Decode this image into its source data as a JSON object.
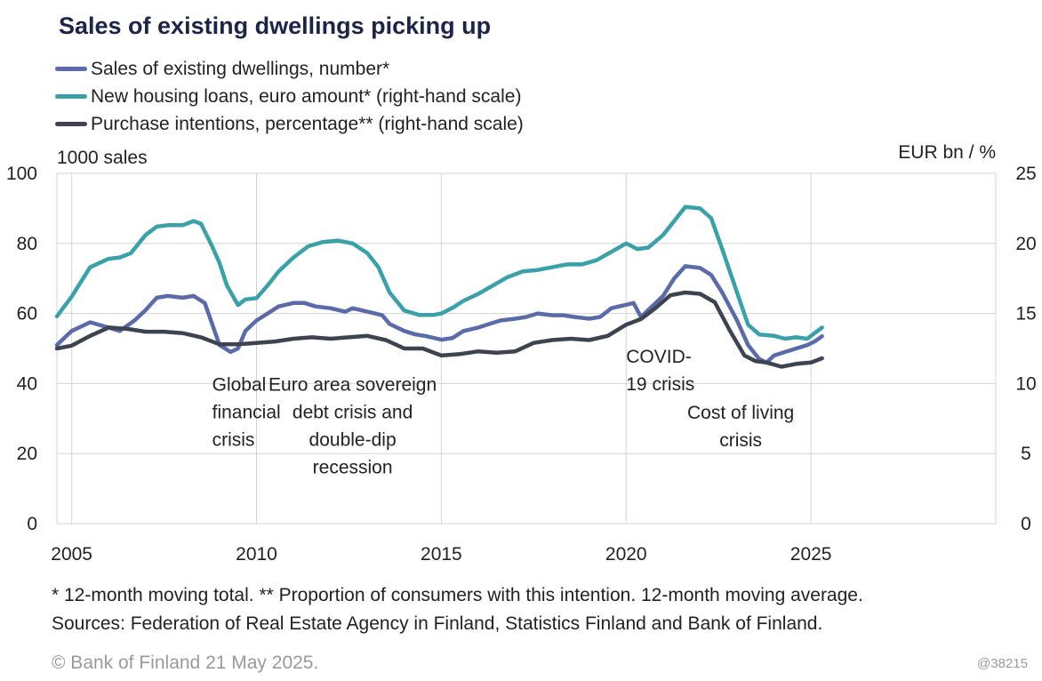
{
  "title": "Sales of existing dwellings picking up",
  "legend": [
    {
      "label": "Sales of existing dwellings, number*",
      "color": "#5b6aa9"
    },
    {
      "label": "New housing loans, euro amount* (right-hand scale)",
      "color": "#3ba1a8"
    },
    {
      "label": "Purchase intentions, percentage** (right-hand scale)",
      "color": "#3d4450"
    }
  ],
  "footnotes": {
    "line1": "* 12-month moving total. ** Proportion of consumers with this intention. 12-month moving average.",
    "line2": "Sources: Federation of Real Estate Agency in Finland, Statistics Finland and Bank of Finland.",
    "copyright": "© Bank of Finland 21 May 2025.",
    "chart_id": "@38215"
  },
  "chart_data": {
    "type": "line",
    "title": "Sales of existing dwellings picking up",
    "ylabel_left": "1000 sales",
    "ylabel_right": "EUR bn / %",
    "xlim": [
      2004.6,
      2030.0
    ],
    "ylim_left": [
      0,
      100
    ],
    "ylim_right": [
      0,
      25
    ],
    "left_ticks": [
      "0",
      "20",
      "40",
      "60",
      "80",
      "100"
    ],
    "right_ticks": [
      "0",
      "5",
      "10",
      "15",
      "20",
      "25"
    ],
    "x_ticks": [
      {
        "value": 2005,
        "label": "2005"
      },
      {
        "value": 2010,
        "label": "2010"
      },
      {
        "value": 2015,
        "label": "2015"
      },
      {
        "value": 2020,
        "label": "2020"
      },
      {
        "value": 2025,
        "label": "2025"
      }
    ],
    "grid": true,
    "legend_position": "top-left",
    "annotations": [
      {
        "lines": [
          "Global",
          "financial",
          "crisis"
        ],
        "x": 2008.8,
        "y": 40,
        "anchor": "start"
      },
      {
        "lines": [
          "Euro area sovereign",
          "debt crisis and",
          "double-dip",
          "recession"
        ],
        "x": 2012.6,
        "y": 40,
        "anchor": "middle"
      },
      {
        "lines": [
          "COVID-",
          "19 crisis"
        ],
        "x": 2020.0,
        "y": 48,
        "anchor": "start"
      },
      {
        "lines": [
          "Cost of living",
          "crisis"
        ],
        "x": 2023.1,
        "y": 32,
        "anchor": "middle"
      }
    ],
    "series": [
      {
        "name": "Sales of existing dwellings, number*",
        "axis": "left",
        "color": "#5b6aa9",
        "points": [
          [
            2004.6,
            51
          ],
          [
            2005.0,
            55
          ],
          [
            2005.5,
            57.5
          ],
          [
            2006.0,
            56
          ],
          [
            2006.3,
            55
          ],
          [
            2006.7,
            58
          ],
          [
            2007.0,
            61
          ],
          [
            2007.3,
            64.5
          ],
          [
            2007.6,
            65
          ],
          [
            2008.0,
            64.5
          ],
          [
            2008.3,
            65
          ],
          [
            2008.6,
            63
          ],
          [
            2008.8,
            57
          ],
          [
            2009.0,
            51
          ],
          [
            2009.3,
            49
          ],
          [
            2009.5,
            50
          ],
          [
            2009.7,
            55
          ],
          [
            2010.0,
            58
          ],
          [
            2010.3,
            60
          ],
          [
            2010.6,
            62
          ],
          [
            2011.0,
            63
          ],
          [
            2011.3,
            63
          ],
          [
            2011.6,
            62
          ],
          [
            2012.0,
            61.5
          ],
          [
            2012.4,
            60.5
          ],
          [
            2012.6,
            61.5
          ],
          [
            2013.0,
            60.5
          ],
          [
            2013.4,
            59.5
          ],
          [
            2013.6,
            57
          ],
          [
            2014.0,
            55
          ],
          [
            2014.3,
            54
          ],
          [
            2014.6,
            53.5
          ],
          [
            2015.0,
            52.5
          ],
          [
            2015.3,
            53
          ],
          [
            2015.6,
            55
          ],
          [
            2016.0,
            56
          ],
          [
            2016.3,
            57
          ],
          [
            2016.6,
            58
          ],
          [
            2017.0,
            58.5
          ],
          [
            2017.3,
            59
          ],
          [
            2017.6,
            60
          ],
          [
            2018.0,
            59.5
          ],
          [
            2018.3,
            59.5
          ],
          [
            2018.6,
            59
          ],
          [
            2019.0,
            58.5
          ],
          [
            2019.3,
            59
          ],
          [
            2019.6,
            61.5
          ],
          [
            2020.0,
            62.5
          ],
          [
            2020.2,
            63
          ],
          [
            2020.4,
            59
          ],
          [
            2020.6,
            61
          ],
          [
            2021.0,
            65
          ],
          [
            2021.3,
            70
          ],
          [
            2021.6,
            73.5
          ],
          [
            2022.0,
            73
          ],
          [
            2022.3,
            71
          ],
          [
            2022.6,
            66
          ],
          [
            2023.0,
            58
          ],
          [
            2023.3,
            51
          ],
          [
            2023.6,
            47
          ],
          [
            2023.8,
            46
          ],
          [
            2024.0,
            48
          ],
          [
            2024.3,
            49
          ],
          [
            2024.6,
            50
          ],
          [
            2024.9,
            51
          ],
          [
            2025.1,
            52
          ],
          [
            2025.3,
            53.5
          ]
        ]
      },
      {
        "name": "New housing loans, euro amount* (right-hand scale)",
        "axis": "right",
        "color": "#3ba1a8",
        "points": [
          [
            2004.6,
            14.8
          ],
          [
            2005.0,
            16.2
          ],
          [
            2005.5,
            18.3
          ],
          [
            2006.0,
            18.9
          ],
          [
            2006.3,
            19.0
          ],
          [
            2006.6,
            19.3
          ],
          [
            2007.0,
            20.6
          ],
          [
            2007.3,
            21.2
          ],
          [
            2007.6,
            21.3
          ],
          [
            2008.0,
            21.3
          ],
          [
            2008.3,
            21.6
          ],
          [
            2008.5,
            21.4
          ],
          [
            2008.8,
            19.8
          ],
          [
            2009.0,
            18.6
          ],
          [
            2009.2,
            17.0
          ],
          [
            2009.5,
            15.6
          ],
          [
            2009.7,
            16.0
          ],
          [
            2010.0,
            16.1
          ],
          [
            2010.3,
            17.0
          ],
          [
            2010.6,
            18.0
          ],
          [
            2011.0,
            19.0
          ],
          [
            2011.4,
            19.8
          ],
          [
            2011.8,
            20.1
          ],
          [
            2012.2,
            20.2
          ],
          [
            2012.6,
            20.0
          ],
          [
            2013.0,
            19.3
          ],
          [
            2013.3,
            18.3
          ],
          [
            2013.6,
            16.5
          ],
          [
            2014.0,
            15.2
          ],
          [
            2014.4,
            14.9
          ],
          [
            2014.8,
            14.9
          ],
          [
            2015.0,
            15.0
          ],
          [
            2015.3,
            15.4
          ],
          [
            2015.6,
            15.9
          ],
          [
            2016.0,
            16.4
          ],
          [
            2016.4,
            17.0
          ],
          [
            2016.8,
            17.6
          ],
          [
            2017.2,
            18.0
          ],
          [
            2017.6,
            18.1
          ],
          [
            2018.0,
            18.3
          ],
          [
            2018.4,
            18.5
          ],
          [
            2018.8,
            18.5
          ],
          [
            2019.2,
            18.8
          ],
          [
            2019.6,
            19.4
          ],
          [
            2020.0,
            20.0
          ],
          [
            2020.3,
            19.6
          ],
          [
            2020.6,
            19.7
          ],
          [
            2021.0,
            20.6
          ],
          [
            2021.3,
            21.6
          ],
          [
            2021.6,
            22.6
          ],
          [
            2022.0,
            22.5
          ],
          [
            2022.3,
            21.8
          ],
          [
            2022.6,
            19.6
          ],
          [
            2023.0,
            16.5
          ],
          [
            2023.3,
            14.2
          ],
          [
            2023.6,
            13.5
          ],
          [
            2024.0,
            13.4
          ],
          [
            2024.3,
            13.2
          ],
          [
            2024.6,
            13.3
          ],
          [
            2024.9,
            13.2
          ],
          [
            2025.1,
            13.6
          ],
          [
            2025.3,
            14.0
          ]
        ]
      },
      {
        "name": "Purchase intentions, percentage** (right-hand scale)",
        "axis": "right",
        "color": "#3d4450",
        "points": [
          [
            2004.6,
            12.5
          ],
          [
            2005.0,
            12.7
          ],
          [
            2005.5,
            13.4
          ],
          [
            2006.0,
            14.0
          ],
          [
            2006.5,
            13.9
          ],
          [
            2007.0,
            13.7
          ],
          [
            2007.5,
            13.7
          ],
          [
            2008.0,
            13.6
          ],
          [
            2008.5,
            13.3
          ],
          [
            2009.0,
            12.8
          ],
          [
            2009.5,
            12.8
          ],
          [
            2010.0,
            12.9
          ],
          [
            2010.5,
            13.0
          ],
          [
            2011.0,
            13.2
          ],
          [
            2011.5,
            13.3
          ],
          [
            2012.0,
            13.2
          ],
          [
            2012.5,
            13.3
          ],
          [
            2013.0,
            13.4
          ],
          [
            2013.5,
            13.1
          ],
          [
            2014.0,
            12.5
          ],
          [
            2014.5,
            12.5
          ],
          [
            2015.0,
            12.0
          ],
          [
            2015.5,
            12.1
          ],
          [
            2016.0,
            12.3
          ],
          [
            2016.5,
            12.2
          ],
          [
            2017.0,
            12.3
          ],
          [
            2017.5,
            12.9
          ],
          [
            2018.0,
            13.1
          ],
          [
            2018.5,
            13.2
          ],
          [
            2019.0,
            13.1
          ],
          [
            2019.5,
            13.4
          ],
          [
            2020.0,
            14.2
          ],
          [
            2020.4,
            14.6
          ],
          [
            2020.8,
            15.4
          ],
          [
            2021.2,
            16.3
          ],
          [
            2021.6,
            16.5
          ],
          [
            2022.0,
            16.4
          ],
          [
            2022.4,
            15.8
          ],
          [
            2022.8,
            13.8
          ],
          [
            2023.2,
            12.0
          ],
          [
            2023.5,
            11.6
          ],
          [
            2023.8,
            11.5
          ],
          [
            2024.2,
            11.2
          ],
          [
            2024.6,
            11.4
          ],
          [
            2025.0,
            11.5
          ],
          [
            2025.3,
            11.8
          ]
        ]
      }
    ]
  }
}
